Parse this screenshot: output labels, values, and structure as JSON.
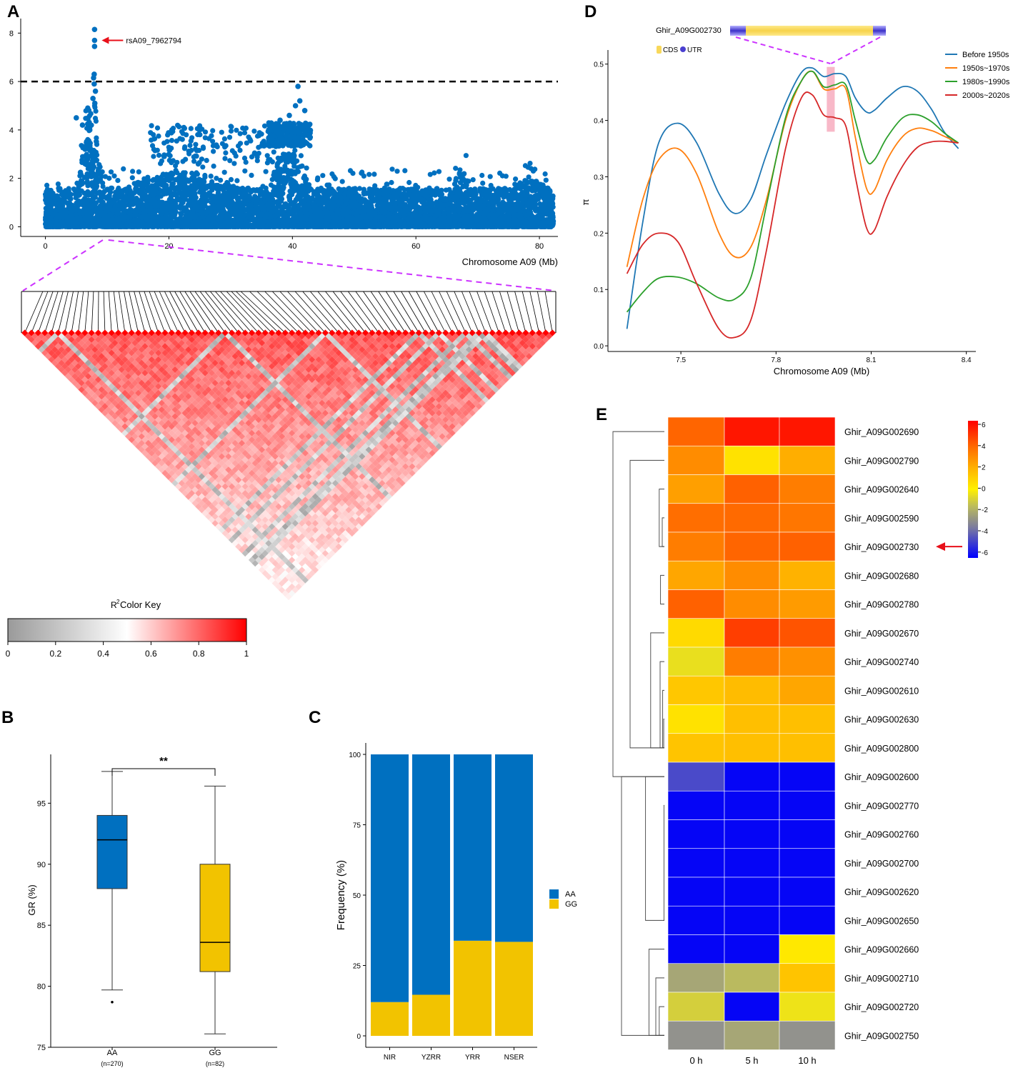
{
  "figure": {
    "labels": [
      "A",
      "B",
      "C",
      "D",
      "E"
    ]
  },
  "colors": {
    "manhattan_point": "#0070c0",
    "threshold": "#000000",
    "zoom_line": "#cc33ff",
    "ld_high": "#ff0000",
    "ld_low": "#9a9a9a",
    "arrow": "#e8101a",
    "box_aa": "#0070c0",
    "box_gg": "#f2c300",
    "bar_aa": "#0070c0",
    "bar_gg": "#f2c300",
    "pi_highlight": "#f8b8c8",
    "cds": "#f8d85a",
    "utr": "#4a3fd0"
  },
  "chart_data": [
    {
      "id": "A_manhattan",
      "type": "scatter",
      "title": "",
      "xlabel": "Chromosome A09 (Mb)",
      "ylabel": "",
      "xlim": [
        -4,
        83
      ],
      "ylim": [
        -0.4,
        8.6
      ],
      "xticks": [
        0,
        20,
        40,
        60,
        80
      ],
      "yticks": [
        0,
        2,
        4,
        6,
        8
      ],
      "threshold": 6,
      "annotation": "rsA09_7962794",
      "peak_points": [
        [
          7.96,
          8.15
        ],
        [
          7.96,
          7.7
        ],
        [
          7.96,
          7.45
        ],
        [
          7.9,
          6.3
        ],
        [
          7.8,
          6.15
        ],
        [
          7.9,
          5.9
        ],
        [
          8.1,
          5.6
        ],
        [
          7.7,
          5.3
        ],
        [
          8.0,
          5.1
        ],
        [
          40.9,
          5.8
        ],
        [
          41.2,
          5.2
        ],
        [
          40.5,
          5.0
        ],
        [
          42.0,
          4.8
        ],
        [
          5.0,
          4.5
        ],
        [
          6.0,
          4.2
        ],
        [
          39.5,
          4.6
        ],
        [
          38.0,
          4.4
        ],
        [
          37.0,
          4.1
        ]
      ],
      "background_model": {
        "description": "dense SNP associations across chromosome A09",
        "x_range": [
          0,
          82.3
        ],
        "base_max": 1.6,
        "clusters": [
          {
            "center": 7.2,
            "width": 2.2,
            "height": 3.6
          },
          {
            "center": 39.5,
            "width": 3.2,
            "height": 3.2
          },
          {
            "center": 22,
            "width": 9,
            "height": 2.3
          },
          {
            "center": 67.5,
            "width": 1.5,
            "height": 2.4
          },
          {
            "center": 78.5,
            "width": 2.5,
            "height": 2.0
          },
          {
            "center": 62,
            "width": 4,
            "height": 1.2
          }
        ]
      }
    },
    {
      "id": "A_ld_heatmap",
      "type": "heatmap",
      "title": "Color Key",
      "legend_label": "R2",
      "legend_ticks": [
        "0",
        "0.2",
        "0.4",
        "0.6",
        "0.8",
        "1"
      ],
      "value_range": [
        0,
        1
      ],
      "n_snps": 80,
      "low_ld_snps": [
        5,
        30,
        45,
        59,
        62,
        66,
        68,
        69
      ],
      "mean_r2": 0.9
    },
    {
      "id": "B_boxplot",
      "type": "box",
      "ylabel": "GR (%)",
      "ylim": [
        75,
        99
      ],
      "yticks": [
        75,
        80,
        85,
        90,
        95
      ],
      "significance": "**",
      "groups": [
        {
          "name": "AA",
          "n_label": "(n=270)",
          "min": 79.7,
          "q1": 88.0,
          "median": 92.0,
          "q3": 94.0,
          "max": 97.6,
          "outliers": [
            78.7
          ]
        },
        {
          "name": "GG",
          "n_label": "(n=82)",
          "min": 76.1,
          "q1": 81.2,
          "median": 83.6,
          "q3": 90.0,
          "max": 96.4,
          "outliers": []
        }
      ]
    },
    {
      "id": "C_stacked_bar",
      "type": "bar",
      "stacked": true,
      "ylabel": "Frequency (%)",
      "ylim": [
        0,
        100
      ],
      "yticks": [
        0,
        25,
        50,
        75,
        100
      ],
      "categories": [
        "NIR",
        "YZRR",
        "YRR",
        "NSER"
      ],
      "series": [
        {
          "name": "GG",
          "values": [
            12.0,
            14.6,
            33.8,
            33.4
          ]
        },
        {
          "name": "AA",
          "values": [
            88.0,
            85.4,
            66.2,
            66.6
          ]
        }
      ],
      "legend": [
        "AA",
        "GG"
      ]
    },
    {
      "id": "D_pi_lines",
      "type": "line",
      "xlabel": "Chromosome A09 (Mb)",
      "ylabel": "π",
      "xlim": [
        7.27,
        8.43
      ],
      "ylim": [
        -0.01,
        0.525
      ],
      "xticks": [
        7.5,
        7.8,
        8.1,
        8.4
      ],
      "xtick_labels": [
        "7.5",
        "7.8",
        "8.1",
        "8.4"
      ],
      "yticks": [
        0.0,
        0.1,
        0.2,
        0.3,
        0.4,
        0.5
      ],
      "ytick_labels": [
        "0.0",
        "0.1",
        "0.2",
        "0.3",
        "0.4",
        "0.5"
      ],
      "highlight_range": [
        7.96,
        7.985
      ],
      "highlight_y": [
        0.38,
        0.495
      ],
      "gene": {
        "name": "Ghir_A09G002730",
        "legend": [
          "CDS",
          "UTR"
        ]
      },
      "x": [
        7.33,
        7.38,
        7.43,
        7.49,
        7.55,
        7.62,
        7.67,
        7.72,
        7.77,
        7.83,
        7.88,
        7.915,
        7.95,
        7.985,
        8.02,
        8.05,
        8.085,
        8.11,
        8.15,
        8.2,
        8.245,
        8.29,
        8.33,
        8.375
      ],
      "series": [
        {
          "name": "Before 1950s",
          "color": "#1f77b4",
          "values": [
            0.03,
            0.22,
            0.36,
            0.395,
            0.36,
            0.27,
            0.235,
            0.26,
            0.34,
            0.43,
            0.485,
            0.493,
            0.478,
            0.483,
            0.478,
            0.44,
            0.415,
            0.418,
            0.44,
            0.46,
            0.452,
            0.42,
            0.38,
            0.35
          ]
        },
        {
          "name": "1950s~1970s",
          "color": "#ff7f0e",
          "values": [
            0.14,
            0.26,
            0.33,
            0.35,
            0.305,
            0.2,
            0.158,
            0.175,
            0.26,
            0.4,
            0.47,
            0.487,
            0.456,
            0.456,
            0.456,
            0.37,
            0.28,
            0.276,
            0.33,
            0.372,
            0.386,
            0.382,
            0.372,
            0.36
          ]
        },
        {
          "name": "1980s~1990s",
          "color": "#2ca02c",
          "values": [
            0.06,
            0.095,
            0.12,
            0.122,
            0.11,
            0.085,
            0.083,
            0.12,
            0.25,
            0.405,
            0.47,
            0.487,
            0.46,
            0.463,
            0.463,
            0.4,
            0.33,
            0.33,
            0.37,
            0.405,
            0.41,
            0.398,
            0.378,
            0.36
          ]
        },
        {
          "name": "2000s~2020s",
          "color": "#d62728",
          "values": [
            0.128,
            0.18,
            0.2,
            0.185,
            0.11,
            0.03,
            0.015,
            0.045,
            0.17,
            0.35,
            0.44,
            0.445,
            0.41,
            0.405,
            0.39,
            0.3,
            0.21,
            0.205,
            0.265,
            0.32,
            0.352,
            0.362,
            0.363,
            0.36
          ]
        }
      ]
    },
    {
      "id": "E_heatmap",
      "type": "heatmap",
      "columns": [
        "0 h",
        "5 h",
        "10 h"
      ],
      "legend_ticks": [
        "6",
        "4",
        "2",
        "0",
        "-2",
        "-4",
        "-6"
      ],
      "value_range": [
        -6.5,
        6.5
      ],
      "highlight_row": "Ghir_A09G002730",
      "rows": [
        {
          "gene": "Ghir_A09G002690",
          "values": [
            4.2,
            6.0,
            6.0
          ]
        },
        {
          "gene": "Ghir_A09G002790",
          "values": [
            3.2,
            0.5,
            2.3
          ]
        },
        {
          "gene": "Ghir_A09G002640",
          "values": [
            2.7,
            4.3,
            3.6
          ]
        },
        {
          "gene": "Ghir_A09G002590",
          "values": [
            4.0,
            4.1,
            3.8
          ]
        },
        {
          "gene": "Ghir_A09G002730",
          "values": [
            3.6,
            4.2,
            4.3
          ]
        },
        {
          "gene": "Ghir_A09G002680",
          "values": [
            2.5,
            3.2,
            2.2
          ]
        },
        {
          "gene": "Ghir_A09G002780",
          "values": [
            4.3,
            3.2,
            2.8
          ]
        },
        {
          "gene": "Ghir_A09G002670",
          "values": [
            0.8,
            5.1,
            4.6
          ]
        },
        {
          "gene": "Ghir_A09G002740",
          "values": [
            -0.5,
            3.6,
            3.1
          ]
        },
        {
          "gene": "Ghir_A09G002610",
          "values": [
            1.5,
            1.9,
            2.5
          ]
        },
        {
          "gene": "Ghir_A09G002630",
          "values": [
            0.5,
            1.8,
            1.8
          ]
        },
        {
          "gene": "Ghir_A09G002800",
          "values": [
            1.6,
            1.8,
            1.8
          ]
        },
        {
          "gene": "Ghir_A09G002600",
          "values": [
            -4.3,
            -6.3,
            -6.3
          ]
        },
        {
          "gene": "Ghir_A09G002770",
          "values": [
            -6.3,
            -6.3,
            -6.3
          ]
        },
        {
          "gene": "Ghir_A09G002760",
          "values": [
            -6.3,
            -6.3,
            -6.3
          ]
        },
        {
          "gene": "Ghir_A09G002700",
          "values": [
            -6.3,
            -6.3,
            -6.3
          ]
        },
        {
          "gene": "Ghir_A09G002620",
          "values": [
            -6.3,
            -6.3,
            -6.3
          ]
        },
        {
          "gene": "Ghir_A09G002650",
          "values": [
            -6.3,
            -6.3,
            -6.3
          ]
        },
        {
          "gene": "Ghir_A09G002660",
          "values": [
            -6.3,
            -6.3,
            0.3
          ]
        },
        {
          "gene": "Ghir_A09G002710",
          "values": [
            -2.1,
            -1.6,
            1.6
          ]
        },
        {
          "gene": "Ghir_A09G002720",
          "values": [
            -1.0,
            -6.3,
            -0.4
          ]
        },
        {
          "gene": "Ghir_A09G002750",
          "values": [
            -2.6,
            -2.1,
            -2.6
          ]
        }
      ],
      "dendrogram_merges": [
        [
          0,
          12,
          6
        ],
        [
          1,
          11,
          4
        ],
        [
          2,
          4,
          0.6
        ],
        [
          3,
          4,
          0.25
        ],
        [
          5,
          6,
          0.45
        ],
        [
          7,
          11,
          1.6
        ],
        [
          9,
          11,
          0.2
        ],
        [
          10,
          11,
          0.08
        ],
        [
          8,
          11,
          0.5
        ],
        [
          13,
          17,
          0.05
        ],
        [
          12,
          17,
          2.2
        ],
        [
          18,
          21,
          1.8
        ],
        [
          19,
          21,
          1.0
        ],
        [
          20,
          21,
          0.6
        ],
        [
          12,
          21,
          5
        ]
      ]
    }
  ]
}
